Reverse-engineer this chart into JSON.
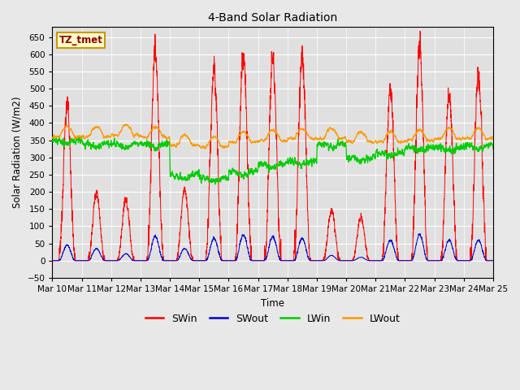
{
  "title": "4-Band Solar Radiation",
  "xlabel": "Time",
  "ylabel": "Solar Radiation (W/m2)",
  "ylim": [
    -50,
    680
  ],
  "xlim": [
    0,
    15
  ],
  "bg_color": "#e8e8e8",
  "plot_bg_color": "#e0e0e0",
  "annotation_text": "TZ_tmet",
  "annotation_bg": "#ffffcc",
  "annotation_border": "#cc9900",
  "annotation_text_color": "#8B0000",
  "legend_entries": [
    "SWin",
    "SWout",
    "LWin",
    "LWout"
  ],
  "legend_colors": [
    "#ff0000",
    "#0000cc",
    "#00cc00",
    "#ff9900"
  ],
  "yticks": [
    -50,
    0,
    50,
    100,
    150,
    200,
    250,
    300,
    350,
    400,
    450,
    500,
    550,
    600,
    650
  ],
  "xtick_labels": [
    "Mar 10",
    "Mar 11",
    "Mar 12",
    "Mar 13",
    "Mar 14",
    "Mar 15",
    "Mar 16",
    "Mar 17",
    "Mar 18",
    "Mar 19",
    "Mar 20",
    "Mar 21",
    "Mar 22",
    "Mar 23",
    "Mar 24",
    "Mar 25"
  ],
  "days": 15,
  "pts_per_day": 288,
  "swin_peaks": [
    450,
    200,
    175,
    610,
    205,
    555,
    605,
    600,
    595,
    145,
    125,
    495,
    625,
    485,
    545
  ],
  "swout_peaks": [
    45,
    35,
    20,
    70,
    35,
    65,
    75,
    70,
    65,
    15,
    10,
    60,
    75,
    60,
    60
  ],
  "lwin_base": [
    350,
    340,
    340,
    340,
    250,
    240,
    260,
    280,
    290,
    340,
    300,
    315,
    330,
    330,
    335
  ],
  "lwout_base": [
    360,
    360,
    365,
    360,
    335,
    330,
    345,
    350,
    355,
    355,
    345,
    345,
    350,
    355,
    355
  ],
  "lwin_noise": 12,
  "lwout_noise": 6
}
